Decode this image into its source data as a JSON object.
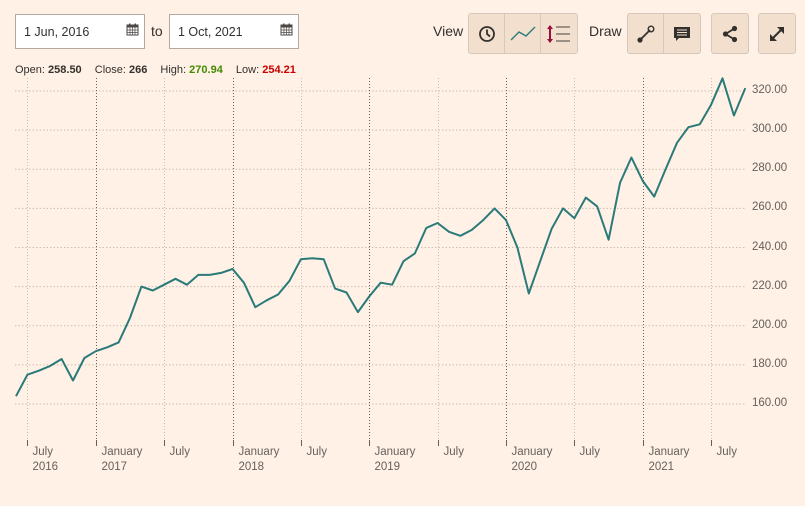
{
  "controls": {
    "from_date": "1 Jun, 2016",
    "to_label": "to",
    "to_date": "1 Oct, 2021",
    "view_label": "View",
    "draw_label": "Draw",
    "view_buttons": [
      "clock-icon",
      "line-chart-icon",
      "indicators-icon"
    ],
    "draw_buttons": [
      "line-draw-icon",
      "comment-icon"
    ],
    "share_icon": "share-icon",
    "expand_icon": "expand-icon"
  },
  "ohlc": {
    "open_label": "Open:",
    "open": "258.50",
    "close_label": "Close:",
    "close": "266",
    "high_label": "High:",
    "high": "270.94",
    "low_label": "Low:",
    "low": "254.21",
    "high_color": "#458b00",
    "low_color": "#cc0000"
  },
  "colors": {
    "background": "#fff1e5",
    "line": "#2b7a7a",
    "grid": "#c9bfb6",
    "year_grid": "#66605c"
  },
  "chart_data": {
    "type": "line",
    "title": "",
    "xlabel": "",
    "ylabel": "",
    "ylim": [
      152,
      330
    ],
    "grid": true,
    "legend": "none",
    "y_ticks": [
      "160.00",
      "180.00",
      "200.00",
      "220.00",
      "240.00",
      "260.00",
      "280.00",
      "300.00",
      "320.00"
    ],
    "x_ticks": [
      {
        "label": "July",
        "year": "2016"
      },
      {
        "label": "January",
        "year": "2017"
      },
      {
        "label": "July",
        "year": ""
      },
      {
        "label": "January",
        "year": "2018"
      },
      {
        "label": "July",
        "year": ""
      },
      {
        "label": "January",
        "year": "2019"
      },
      {
        "label": "July",
        "year": ""
      },
      {
        "label": "January",
        "year": "2020"
      },
      {
        "label": "July",
        "year": ""
      },
      {
        "label": "January",
        "year": "2021"
      },
      {
        "label": "July",
        "year": ""
      }
    ],
    "x": [
      "2016-06",
      "2016-07",
      "2016-08",
      "2016-09",
      "2016-10",
      "2016-11",
      "2016-12",
      "2017-01",
      "2017-02",
      "2017-03",
      "2017-04",
      "2017-05",
      "2017-06",
      "2017-07",
      "2017-08",
      "2017-09",
      "2017-10",
      "2017-11",
      "2017-12",
      "2018-01",
      "2018-02",
      "2018-03",
      "2018-04",
      "2018-05",
      "2018-06",
      "2018-07",
      "2018-08",
      "2018-09",
      "2018-10",
      "2018-11",
      "2018-12",
      "2019-01",
      "2019-02",
      "2019-03",
      "2019-04",
      "2019-05",
      "2019-06",
      "2019-07",
      "2019-08",
      "2019-09",
      "2019-10",
      "2019-11",
      "2019-12",
      "2020-01",
      "2020-02",
      "2020-03",
      "2020-04",
      "2020-05",
      "2020-06",
      "2020-07",
      "2020-08",
      "2020-09",
      "2020-10",
      "2020-11",
      "2020-12",
      "2021-01",
      "2021-02",
      "2021-03",
      "2021-04",
      "2021-05",
      "2021-06",
      "2021-07",
      "2021-08",
      "2021-09",
      "2021-10"
    ],
    "series": [
      {
        "name": "Close",
        "values": [
          164,
          175,
          177,
          179.5,
          183,
          172,
          183.5,
          187,
          189,
          191.5,
          204,
          220,
          218,
          221,
          224,
          221,
          226,
          226,
          227,
          229,
          222,
          209.5,
          213,
          216,
          223,
          234,
          234.5,
          234,
          219,
          217,
          207,
          215,
          222,
          221,
          233,
          237,
          250,
          252.5,
          248,
          246,
          249,
          254,
          260,
          254,
          240,
          216.5,
          233,
          249.5,
          260,
          255,
          265.5,
          261,
          244,
          273,
          286,
          274,
          266,
          280,
          293.5,
          301.5,
          303,
          313,
          326.5,
          307.5,
          321.5
        ]
      }
    ]
  }
}
